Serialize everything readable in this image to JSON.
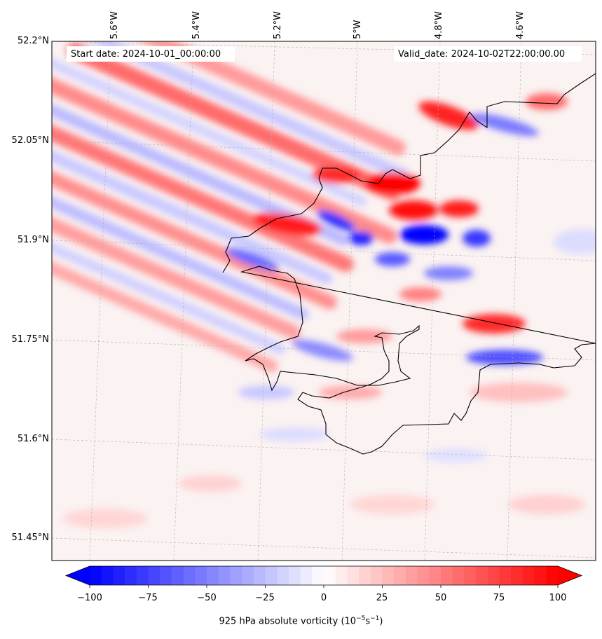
{
  "header": {
    "start_date": "Start date: 2024-10-01_00:00:00",
    "valid_date": "Valid_date: 2024-10-02T22:00:00.00"
  },
  "axes": {
    "lon_labels": [
      "5.6°W",
      "5.4°W",
      "5.2°W",
      "5°W",
      "4.8°W",
      "4.6°W"
    ],
    "lat_labels": [
      "52.2°N",
      "52.05°N",
      "51.9°N",
      "51.75°N",
      "51.6°N",
      "51.45°N"
    ]
  },
  "colorbar": {
    "ticks": [
      "−100",
      "−75",
      "−50",
      "−25",
      "0",
      "25",
      "50",
      "75",
      "100"
    ],
    "label_prefix": "925 hPa absolute vorticity (10",
    "label_exp1": "−5",
    "label_mid": "s",
    "label_exp2": "−1",
    "label_suffix": ")",
    "min": -100,
    "max": 100,
    "neg_color": "#0000ff",
    "pos_color": "#ff0000",
    "mid_color": "#ffffff"
  }
}
